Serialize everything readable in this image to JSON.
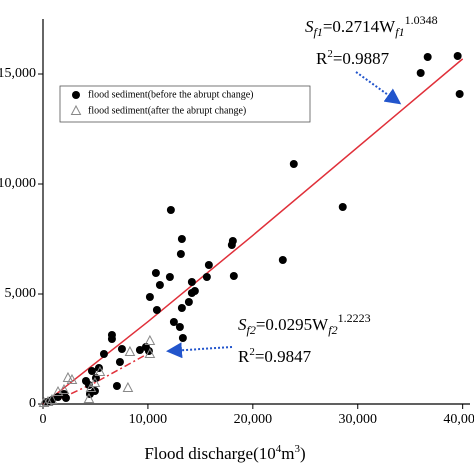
{
  "chart_data": {
    "type": "scatter",
    "xlabel": {
      "main": "Flood discharge(10",
      "sup1": "4",
      "unit": "m",
      "sup2": "3",
      "end": ")"
    },
    "xlim": [
      0,
      40700
    ],
    "ylim": [
      0,
      17500
    ],
    "xticks": [
      0,
      {
        "value": 10000,
        "label": "10,000"
      },
      {
        "value": 20000,
        "label": "20,000"
      },
      {
        "value": 30000,
        "label": "30,000"
      },
      {
        "value": 40000,
        "label": "40,000"
      }
    ],
    "yticks": [
      0,
      {
        "value": 5000,
        "label": "5,000"
      },
      {
        "value": 10000,
        "label": "10,000"
      },
      {
        "value": 15000,
        "label": "15,000"
      }
    ],
    "series": [
      {
        "name": "flood sediment(before the abrupt change)",
        "marker": "circle",
        "color": "#000000",
        "x": [
          36667,
          39524,
          39714,
          36000,
          28571,
          23905,
          22857,
          12190,
          18095,
          18000,
          18190,
          15810,
          13238,
          13143,
          12095,
          10762,
          10190,
          11143,
          14190,
          15619,
          14476,
          13905,
          14190,
          13238,
          10857,
          12476,
          13048,
          13333,
          6571,
          6571,
          5810,
          7524,
          9238,
          9810,
          10095,
          7333,
          5333,
          4667,
          5048,
          4095,
          4381,
          4952,
          7048,
          2000,
          1429,
          857,
          381,
          2190,
          4476
        ],
        "values": [
          15773,
          15818,
          14091,
          15045,
          8955,
          10909,
          6545,
          8818,
          7409,
          7227,
          5818,
          6318,
          7500,
          6818,
          5773,
          5955,
          4864,
          5409,
          5545,
          5773,
          5136,
          4636,
          5045,
          4364,
          4273,
          3727,
          3500,
          3000,
          3136,
          2955,
          2273,
          2500,
          2455,
          2591,
          2409,
          1909,
          1636,
          1500,
          1182,
          1045,
          864,
          591,
          818,
          455,
          318,
          182,
          91,
          273,
          455
        ]
      },
      {
        "name": "flood sediment(after the abrupt change)",
        "marker": "triangle",
        "color": "#888888",
        "x": [
          10190,
          10190,
          8286,
          8095,
          5429,
          4952,
          4571,
          2762,
          2381,
          2000,
          1429,
          857,
          476,
          4381,
          95
        ],
        "values": [
          2864,
          2273,
          2364,
          727,
          1455,
          955,
          727,
          1091,
          1182,
          636,
          545,
          182,
          91,
          227,
          45
        ]
      }
    ],
    "fits": [
      {
        "color": "#e0303a",
        "dash": "solid",
        "x": [
          0,
          500,
          10000,
          20000,
          40000
        ],
        "values": [
          0,
          169,
          3740,
          7664,
          15687
        ],
        "label": {
          "s": "S",
          "sub": "f1",
          "mid": "=0.2714W",
          "sub2": "f1",
          "sup": "1.0348",
          "r": "R",
          "rsup": "2",
          "rval": "=0.9887"
        }
      },
      {
        "color": "#e0303a",
        "dash": "dashdot",
        "x": [
          0,
          2000,
          5000,
          10000
        ],
        "values": [
          0,
          320,
          981,
          2287
        ],
        "label": {
          "s": "S",
          "sub": "f2",
          "mid": "=0.0295W",
          "sub2": "f2",
          "sup": "1.2223",
          "r": "R",
          "rsup": "2",
          "rval": "=0.9847"
        }
      }
    ],
    "legend": "upper left"
  }
}
